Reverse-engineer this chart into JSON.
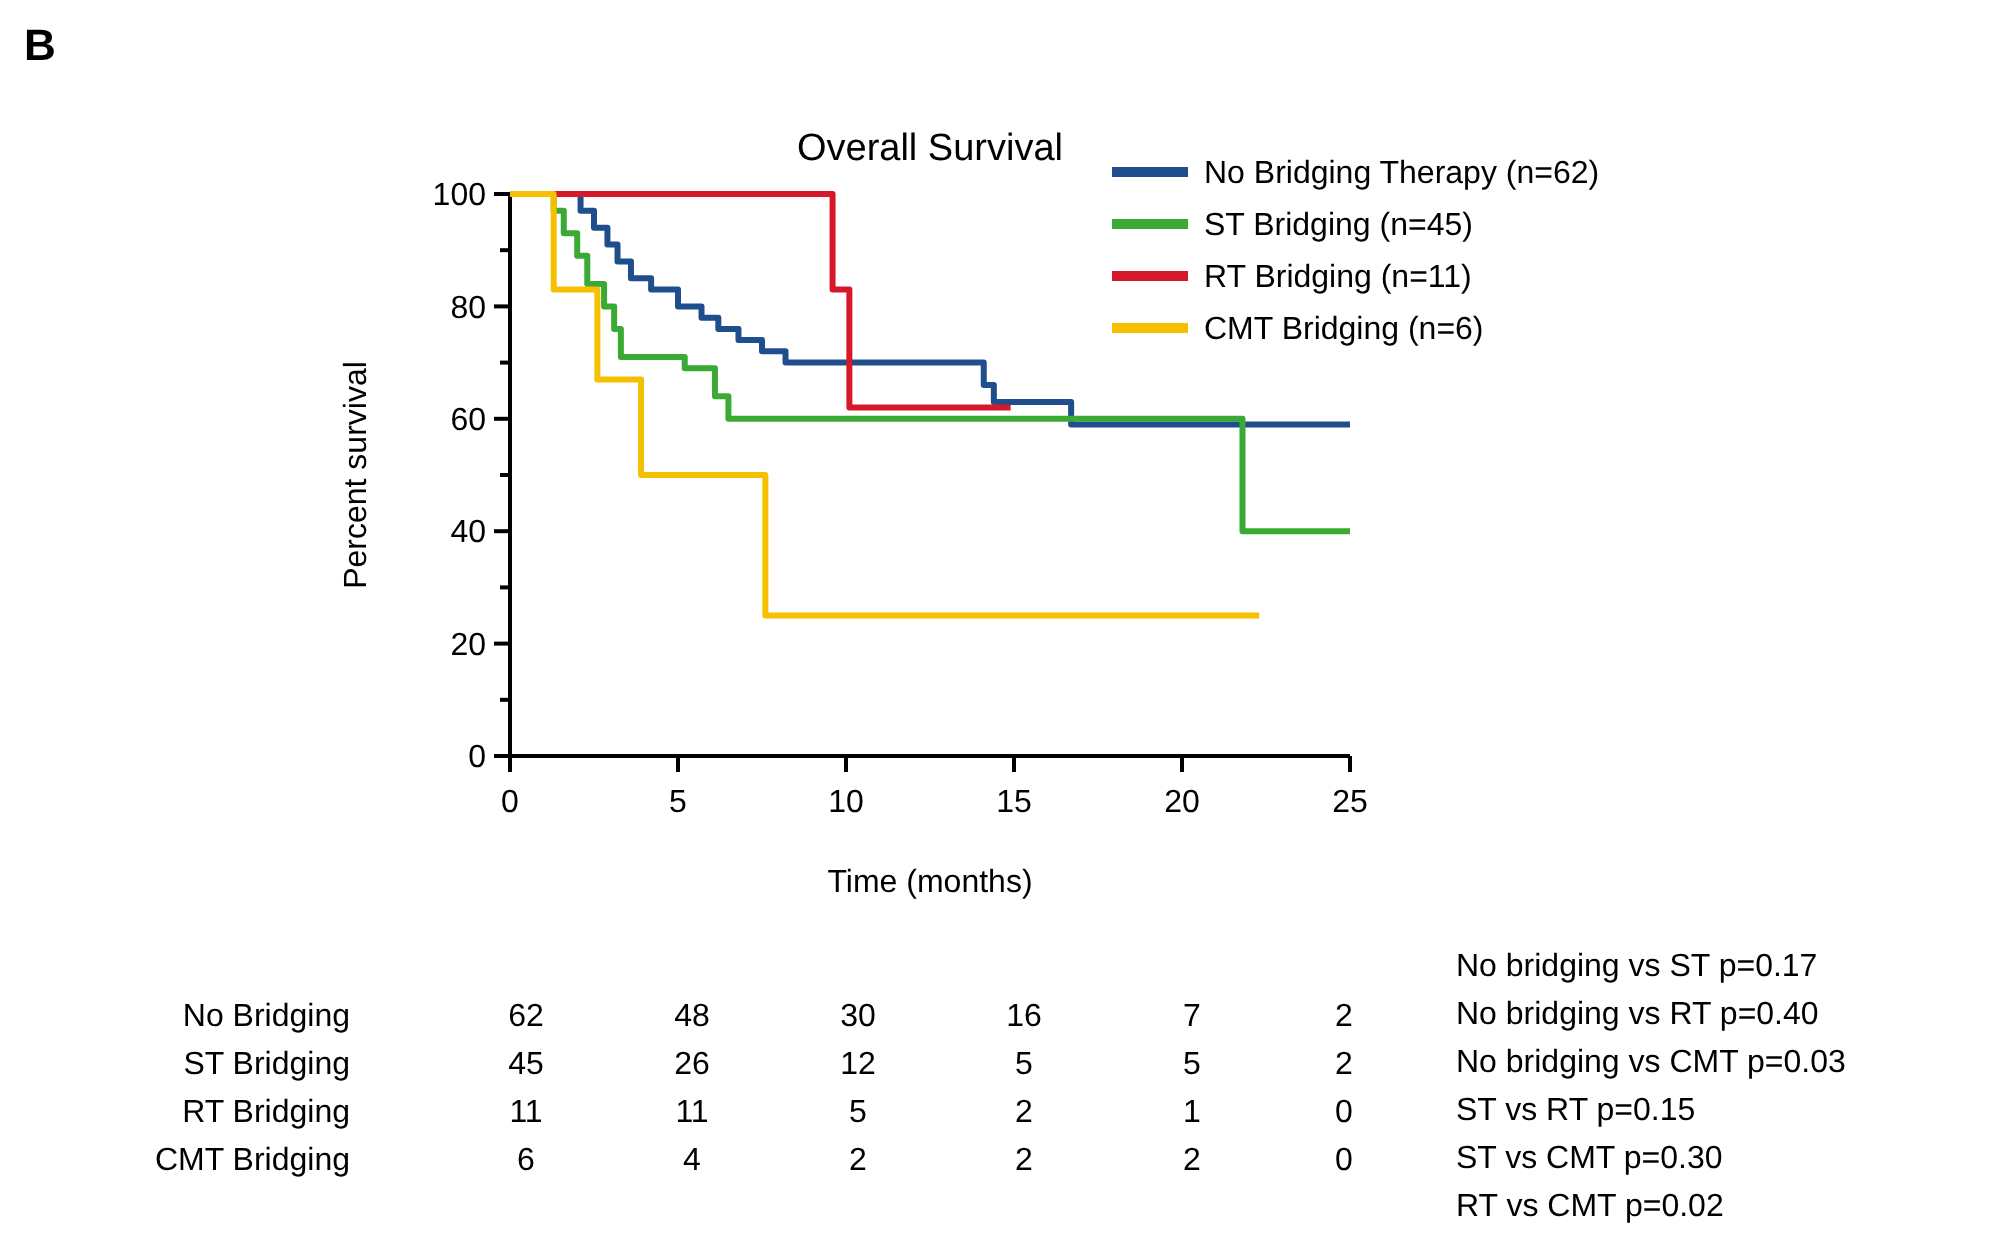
{
  "chart_data": {
    "type": "step",
    "title": "Overall Survival",
    "xlabel": "Time (months)",
    "ylabel": "Percent survival",
    "xlim": [
      0,
      25
    ],
    "xticks": [
      0,
      5,
      10,
      15,
      20,
      25
    ],
    "ylim": [
      0,
      100
    ],
    "yticks": [
      0,
      {
        "value": 10,
        "label": null
      },
      20,
      {
        "value": 30,
        "label": null
      },
      40,
      {
        "value": 50,
        "label": null
      },
      60,
      {
        "value": 70,
        "label": null
      },
      80,
      {
        "value": 90,
        "label": null
      },
      100
    ],
    "grid": false,
    "legend": "top right",
    "marker": "none",
    "line_style": "solid",
    "series": [
      {
        "name": "No Bridging Therapy (n=62)",
        "color": "#1f4e8c",
        "x": [
          0,
          2.1,
          2.5,
          2.9,
          3.2,
          3.6,
          4.2,
          5.0,
          5.7,
          6.2,
          6.8,
          7.5,
          8.2,
          14.1,
          14.4,
          16.7,
          25
        ],
        "values": [
          100,
          97,
          94,
          91,
          88,
          85,
          83,
          80,
          78,
          76,
          74,
          72,
          70,
          66,
          63,
          59,
          59
        ]
      },
      {
        "name": "ST Bridging (n=45)",
        "color": "#3aaa35",
        "x": [
          0,
          1.3,
          1.6,
          2.0,
          2.3,
          2.8,
          3.1,
          3.3,
          5.2,
          6.1,
          6.5,
          21.8,
          25
        ],
        "values": [
          100,
          97,
          93,
          89,
          84,
          80,
          76,
          71,
          69,
          64,
          60,
          40,
          40
        ]
      },
      {
        "name": "RT Bridging (n=11)",
        "color": "#d7182a",
        "x": [
          0,
          9.6,
          10.1,
          14.9
        ],
        "values": [
          100,
          83,
          62,
          62
        ]
      },
      {
        "name": "CMT Bridging (n=6)",
        "color": "#f5c000",
        "x": [
          0,
          1.3,
          2.6,
          3.9,
          7.6,
          22.3
        ],
        "values": [
          100,
          83,
          67,
          50,
          25,
          25
        ]
      }
    ],
    "annotations": [
      "B",
      "No Bridging",
      "62",
      "48",
      "30",
      "16",
      "7",
      "2",
      "ST Bridging",
      "45",
      "26",
      "12",
      "5",
      "5",
      "2",
      "RT Bridging",
      "11",
      "11",
      "5",
      "2",
      "1",
      "0",
      "CMT Bridging",
      "6",
      "4",
      "2",
      "2",
      "2",
      "0",
      "No bridging vs ST p=0.17",
      "No bridging vs RT p=0.40",
      "No bridging vs CMT p=0.03",
      "ST vs RT p=0.15",
      "ST vs CMT p=0.30",
      "RT vs CMT p=0.02"
    ]
  }
}
